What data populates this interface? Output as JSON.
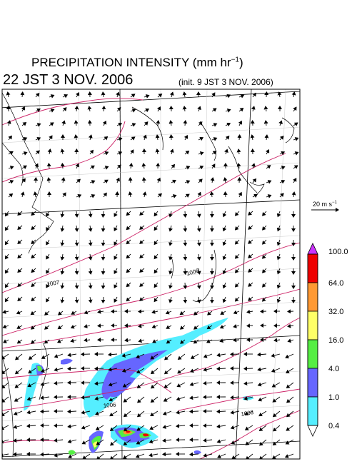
{
  "header": {
    "title": "PRECIPITATION INTENSITY (mm hr",
    "title_exp": "−1",
    "title_close": ")",
    "valid_time": "22 JST 3 NOV. 2006",
    "init_time": "(init. 9 JST 3 NOV. 2006)"
  },
  "wind_scale": {
    "label": "20 m s",
    "label_exp": "−1"
  },
  "isobars": [
    {
      "label": "1007"
    },
    {
      "label": "1006"
    },
    {
      "label": "1006"
    },
    {
      "label": "1003"
    }
  ],
  "colorbar": {
    "labels": [
      "100.0",
      "64.0",
      "32.0",
      "16.0",
      "4.0",
      "1.0",
      "0.4"
    ],
    "colors": [
      "#cc33ff",
      "#ee0000",
      "#ff9933",
      "#ffff66",
      "#55ee44",
      "#6666ff",
      "#55eeff"
    ]
  },
  "chart_data": {
    "type": "heatmap",
    "title": "PRECIPITATION INTENSITY (mm hr−1)",
    "valid_time": "22 JST 3 NOV. 2006",
    "init_time": "(init. 9 JST 3 NOV. 2006)",
    "colorbar_thresholds_mm_per_hr": [
      0.4,
      1.0,
      4.0,
      16.0,
      32.0,
      64.0,
      100.0
    ],
    "isobar_labels_hPa": [
      1007,
      1006,
      1006,
      1003
    ],
    "wind_vector_reference": "20 m s−1"
  }
}
